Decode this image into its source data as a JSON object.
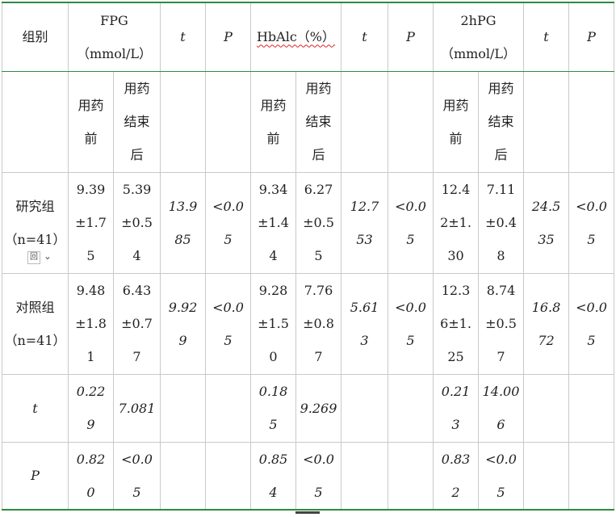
{
  "header": {
    "group": "组别",
    "fpg": [
      "FPG",
      "（mmol/L）"
    ],
    "t": "t",
    "p": "P",
    "hba1c": "HbAlc（%）",
    "hpg": [
      "2hPG",
      "（mmol/L）"
    ]
  },
  "subheader": {
    "before": [
      "用药",
      "前"
    ],
    "after": [
      "用药",
      "结束",
      "后"
    ]
  },
  "rows": {
    "study": {
      "label": [
        "研究组",
        "（n=41）"
      ],
      "fpg_before": [
        "9.39",
        "±1.7",
        "5"
      ],
      "fpg_after": [
        "5.39",
        "±0.5",
        "4"
      ],
      "fpg_t": [
        "13.9",
        "85"
      ],
      "fpg_p": [
        "<0.0",
        "5"
      ],
      "hb_before": [
        "9.34",
        "±1.4",
        "4"
      ],
      "hb_after": [
        "6.27",
        "±0.5",
        "5"
      ],
      "hb_t": [
        "12.7",
        "53"
      ],
      "hb_p": [
        "<0.0",
        "5"
      ],
      "hpg_before": [
        "12.4",
        "2±1.",
        "30"
      ],
      "hpg_after": [
        "7.11",
        "±0.4",
        "8"
      ],
      "hpg_t": [
        "24.5",
        "35"
      ],
      "hpg_p": [
        "<0.0",
        "5"
      ]
    },
    "control": {
      "label": [
        "对照组",
        "（n=41）"
      ],
      "fpg_before": [
        "9.48",
        "±1.8",
        "1"
      ],
      "fpg_after": [
        "6.43",
        "±0.7",
        "7"
      ],
      "fpg_t": [
        "9.92",
        "9"
      ],
      "fpg_p": [
        "<0.0",
        "5"
      ],
      "hb_before": [
        "9.28",
        "±1.5",
        "0"
      ],
      "hb_after": [
        "7.76",
        "±0.8",
        "7"
      ],
      "hb_t": [
        "5.61",
        "3"
      ],
      "hb_p": [
        "<0.0",
        "5"
      ],
      "hpg_before": [
        "12.3",
        "6±1.",
        "25"
      ],
      "hpg_after": [
        "8.74",
        "±0.5",
        "7"
      ],
      "hpg_t": [
        "16.8",
        "72"
      ],
      "hpg_p": [
        "<0.0",
        "5"
      ]
    },
    "t_row": {
      "label": "t",
      "fpg_before": [
        "0.22",
        "9"
      ],
      "fpg_after": [
        "7.081"
      ],
      "hb_before": [
        "0.18",
        "5"
      ],
      "hb_after": [
        "9.269"
      ],
      "hpg_before": [
        "0.21",
        "3"
      ],
      "hpg_after": [
        "14.00",
        "6"
      ]
    },
    "p_row": {
      "label": "P",
      "fpg_before": [
        "0.82",
        "0"
      ],
      "fpg_after": [
        "<0.0",
        "5"
      ],
      "hb_before": [
        "0.85",
        "4"
      ],
      "hb_after": [
        "<0.0",
        "5"
      ],
      "hpg_before": [
        "0.83",
        "2"
      ],
      "hpg_after": [
        "<0.0",
        "5"
      ]
    }
  },
  "ghost_control": "回"
}
